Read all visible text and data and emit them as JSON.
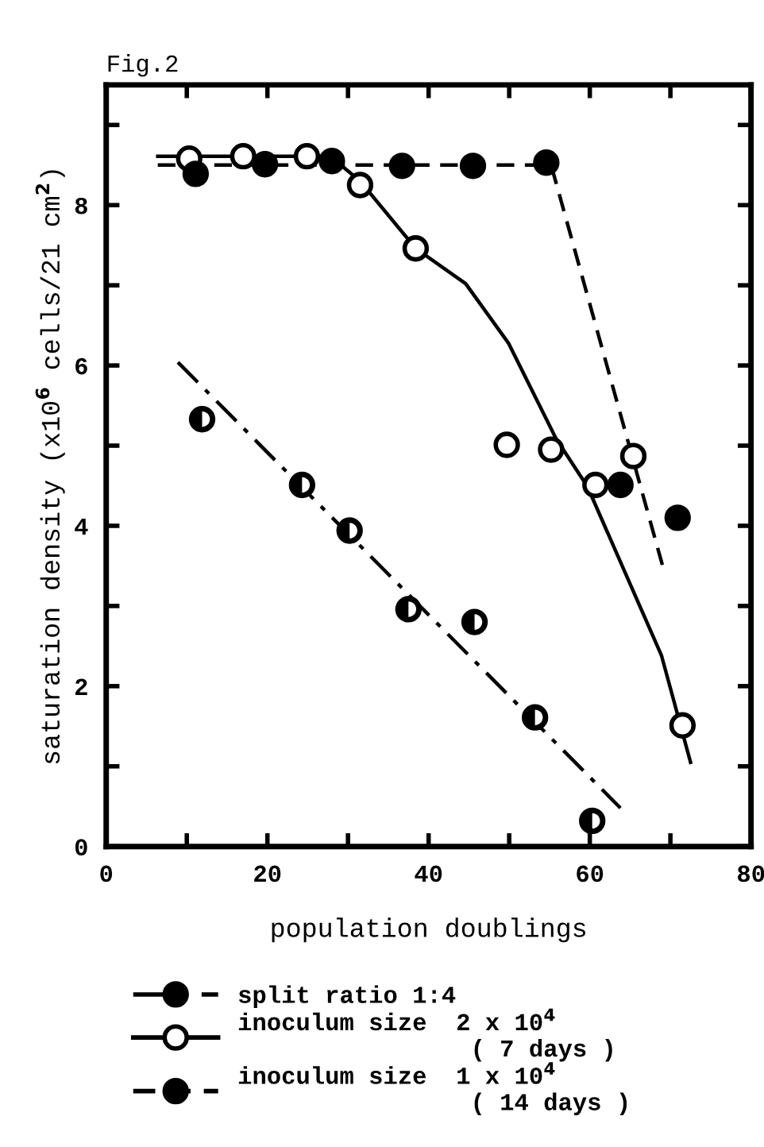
{
  "chart_data": {
    "type": "scatter",
    "title": "Fig.2",
    "xlabel": "population doublings",
    "ylabel": "saturation density (x10$^{6}$ cells/21 cm$^{2}$)",
    "xlim": [
      0,
      80
    ],
    "xticks": [
      0,
      {
        "value": 10,
        "label": null
      },
      20,
      {
        "value": 30,
        "label": null
      },
      40,
      {
        "value": 50,
        "label": null
      },
      60,
      {
        "value": 70,
        "label": null
      },
      80
    ],
    "ylim": [
      0,
      9.5
    ],
    "yticks": [
      0,
      {
        "value": 1,
        "label": null
      },
      2,
      {
        "value": 3,
        "label": null
      },
      4,
      {
        "value": 5,
        "label": null
      },
      6,
      {
        "value": 7,
        "label": null
      },
      8,
      {
        "value": 9,
        "label": null
      }
    ],
    "grid": false,
    "legend": "bottom",
    "marker": "circle",
    "series": [
      {
        "name": "split ratio 1:4",
        "color": "#000000",
        "line_style": "dashdot",
        "x": [
          11.9,
          24.3,
          30.2,
          37.5,
          45.7,
          53.2,
          60.3
        ],
        "values": [
          5.33,
          4.51,
          3.94,
          2.96,
          2.8,
          1.61,
          0.32
        ]
      },
      {
        "name": "inoculum size  2 x 10$^{4}$\n                ( 7 days )",
        "color": "#ffffff",
        "line_style": "solid",
        "x": [
          10.3,
          17.0,
          24.9,
          31.5,
          38.4,
          49.7,
          55.2,
          60.7,
          65.4,
          71.5
        ],
        "values": [
          8.58,
          8.61,
          8.61,
          8.25,
          7.46,
          5.01,
          4.95,
          4.51,
          4.87,
          1.51
        ]
      },
      {
        "name": "inoculum size  1 x 10$^{4}$\n                ( 14 days )",
        "color": "#000000",
        "line_style": "dashed",
        "x": [
          11.1,
          19.7,
          28.0,
          36.7,
          45.5,
          54.6,
          63.8,
          70.9
        ],
        "values": [
          8.39,
          8.51,
          8.55,
          8.49,
          8.49,
          8.53,
          4.51,
          4.1
        ]
      },
      {
        "type": "line",
        "marker": "none",
        "color": "#000000",
        "line_style": "dashdot",
        "x": [
          8.9,
          63.8
        ],
        "values": [
          6.04,
          0.48
        ]
      },
      {
        "type": "line",
        "marker": "none",
        "color": "#000000",
        "line_style": "solid",
        "x": [
          6.4,
          27.8,
          31.5,
          38.4,
          44.6,
          49.9,
          55.8,
          59.7,
          68.9,
          72.5
        ],
        "values": [
          8.61,
          8.61,
          8.3,
          7.46,
          7.02,
          6.28,
          5.09,
          4.49,
          2.38,
          1.05
        ]
      },
      {
        "type": "line",
        "marker": "none",
        "color": "#000000",
        "line_style": "dashed",
        "x": [
          6.4,
          55.2,
          69.2
        ],
        "values": [
          8.5,
          8.5,
          3.44
        ]
      }
    ]
  }
}
